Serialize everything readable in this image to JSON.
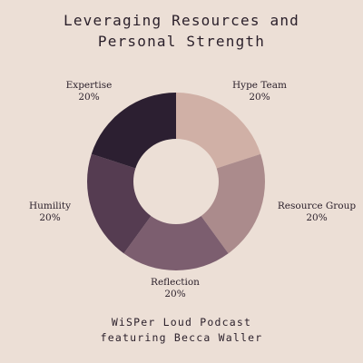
{
  "title_line1": "Leveraging Resources and",
  "title_line2": "Personal Strength",
  "footer_line1": "WiSPer Loud Podcast",
  "footer_line2": "featuring Becca Waller",
  "chart_data": {
    "type": "pie",
    "donut": true,
    "title": "Leveraging Resources and Personal Strength",
    "categories": [
      "Hype Team",
      "Resource Group",
      "Reflection",
      "Humility",
      "Expertise"
    ],
    "values": [
      20,
      20,
      20,
      20,
      20
    ],
    "value_labels": [
      "20%",
      "20%",
      "20%",
      "20%",
      "20%"
    ],
    "colors": [
      "#d0b0a6",
      "#ab8b8c",
      "#7c5e6f",
      "#553c51",
      "#2c1f31"
    ],
    "start_angle": "12 o'clock",
    "direction": "clockwise"
  }
}
